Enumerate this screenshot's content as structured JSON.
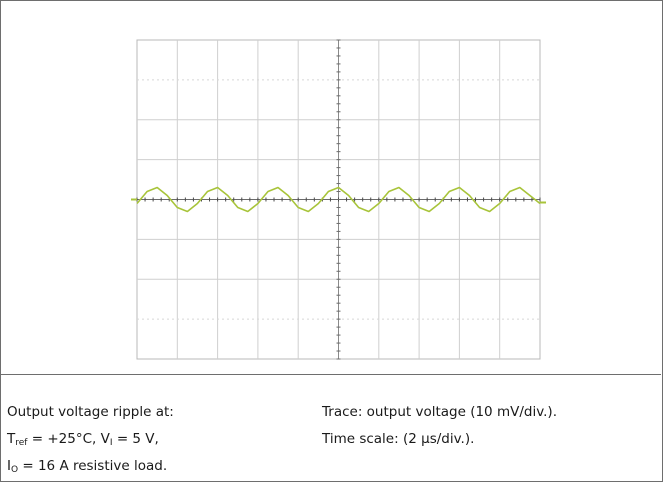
{
  "caption": {
    "left": [
      {
        "text": "Output voltage ripple at:"
      },
      {
        "sym": "T",
        "sub": "ref",
        "text": " = +25°C, ",
        "sym2": "V",
        "sub2": "I",
        "text2": " = 5 V,"
      },
      {
        "sym": "I",
        "sub": "O",
        "text": " = 16 A resistive load."
      }
    ],
    "right": [
      "Trace: output voltage (10 mV/div.).",
      "Time scale: (2 µs/div.)."
    ]
  },
  "chart_data": {
    "type": "line",
    "grid": true,
    "divisions": {
      "x": 10,
      "y": 8
    },
    "x_unit": "µs",
    "x_per_div": 2,
    "y_unit": "mV",
    "y_per_div": 10,
    "xlim": [
      -10,
      10
    ],
    "ylim": [
      -40,
      40
    ],
    "trace_color": "#a8c43a",
    "series": [
      {
        "x": [
          -10,
          -9.5,
          -9,
          -8.5,
          -8,
          -7.5,
          -7,
          -6.5,
          -6,
          -5.5,
          -5,
          -4.5,
          -4,
          -3.5,
          -3,
          -2.5,
          -2,
          -1.5,
          -1,
          -0.5,
          0,
          0.5,
          1,
          1.5,
          2,
          2.5,
          3,
          3.5,
          4,
          4.5,
          5,
          5.5,
          6,
          6.5,
          7,
          7.5,
          8,
          8.5,
          9,
          9.5,
          10
        ],
        "values": [
          -1,
          2,
          3,
          1,
          -2,
          -3,
          -1,
          2,
          3,
          1,
          -2,
          -3,
          -1,
          2,
          3,
          1,
          -2,
          -3,
          -1,
          2,
          3,
          1,
          -2,
          -3,
          -1,
          2,
          3,
          1,
          -2,
          -3,
          -1,
          2,
          3,
          1,
          -2,
          -3,
          -1,
          2,
          3,
          1,
          -1
        ]
      }
    ]
  }
}
